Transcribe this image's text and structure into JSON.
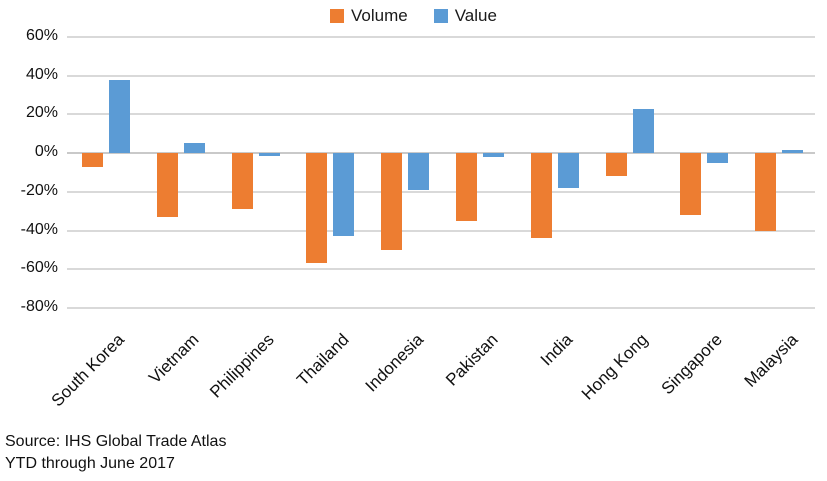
{
  "chart_data": {
    "type": "bar",
    "title": "",
    "categories": [
      "South Korea",
      "Vietnam",
      "Philippines",
      "Thailand",
      "Indonesia",
      "Pakistan",
      "India",
      "Hong Kong",
      "Singapore",
      "Malaysia"
    ],
    "series": [
      {
        "name": "Volume",
        "color": "#ED7D31",
        "values": [
          -7,
          -33,
          -29,
          -57,
          -50,
          -35,
          -44,
          -12,
          -32,
          -40
        ]
      },
      {
        "name": "Value",
        "color": "#5B9BD5",
        "values": [
          38,
          5,
          -1.5,
          -43,
          -19,
          -2,
          -18,
          23,
          -5,
          1.5
        ]
      }
    ],
    "ylim": [
      -80,
      60
    ],
    "y_tick_step": 20,
    "y_ticks": [
      "60%",
      "40%",
      "20%",
      "0%",
      "-20%",
      "-40%",
      "-60%",
      "-80%"
    ],
    "grid": "horizontal",
    "legend_position": "top",
    "xlabel": "",
    "ylabel": ""
  },
  "legend": {
    "volume_label": "Volume",
    "value_label": "Value"
  },
  "footer": {
    "source_line": "Source: IHS Global Trade Atlas",
    "period_line": "YTD through June 2017"
  },
  "colors": {
    "volume_bar": "#ED7D31",
    "value_bar": "#5B9BD5",
    "gridline": "#D9D9D9",
    "zero_line": "#C9C9C9",
    "text": "#111111"
  }
}
